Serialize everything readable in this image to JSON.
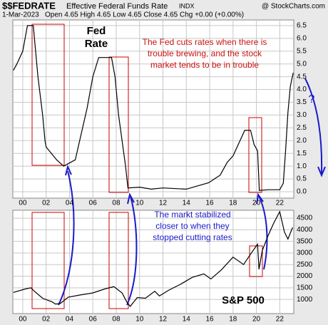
{
  "header": {
    "symbol": "$$FEDRATE",
    "name": "Effective Federal Funds Rate",
    "exchange": "INDX",
    "date": "1-Mar-2023",
    "quote": "Open 4.65  High 4.65  Low 4.65  Close 4.65  Chg +0.00 (+0.00%)",
    "watermark": "@ StockCharts.com"
  },
  "chart_data": [
    {
      "type": "line",
      "title": [
        "Fed",
        "Rate"
      ],
      "annotation": [
        "The Fed cuts rates when there is",
        "trouble brewing, and the stock",
        "market tends to be in trouble"
      ],
      "annotation2": "?",
      "x": [
        1999.2,
        1999.5,
        2000.0,
        2000.4,
        2000.9,
        2001.0,
        2001.3,
        2001.7,
        2001.9,
        2002.0,
        2002.9,
        2003.5,
        2004.5,
        2005.0,
        2005.5,
        2006.0,
        2006.5,
        2007.6,
        2007.9,
        2008.2,
        2008.5,
        2008.8,
        2009.0,
        2010.0,
        2011.0,
        2012.0,
        2014.0,
        2015.9,
        2016.9,
        2017.5,
        2018.0,
        2018.5,
        2019.0,
        2019.5,
        2019.8,
        2020.1,
        2020.25,
        2021.0,
        2022.0,
        2022.3,
        2022.5,
        2022.7,
        2022.9,
        2023.0,
        2023.15
      ],
      "series": [
        {
          "name": "Effective Federal Funds Rate",
          "color": "#000000",
          "values": [
            4.75,
            5.0,
            5.5,
            6.5,
            6.5,
            6.0,
            4.5,
            3.0,
            2.0,
            1.75,
            1.25,
            1.0,
            1.25,
            2.25,
            3.25,
            4.5,
            5.25,
            5.25,
            4.5,
            3.0,
            2.0,
            1.0,
            0.15,
            0.18,
            0.1,
            0.15,
            0.1,
            0.35,
            0.65,
            1.15,
            1.4,
            1.9,
            2.4,
            2.4,
            1.85,
            1.6,
            0.05,
            0.08,
            0.08,
            0.33,
            1.6,
            3.1,
            4.1,
            4.33,
            4.65
          ]
        }
      ],
      "xlim": [
        1999.15,
        2023.2
      ],
      "ylim": [
        -0.25,
        6.72
      ],
      "xticks": [
        {
          "value": 2000,
          "label": "00"
        },
        {
          "value": 2002,
          "label": "02"
        },
        {
          "value": 2004,
          "label": "04"
        },
        {
          "value": 2006,
          "label": "06"
        },
        {
          "value": 2008,
          "label": "08"
        },
        {
          "value": 2010,
          "label": "10"
        },
        {
          "value": 2012,
          "label": "12"
        },
        {
          "value": 2014,
          "label": "14"
        },
        {
          "value": 2016,
          "label": "16"
        },
        {
          "value": 2018,
          "label": "18"
        },
        {
          "value": 2020,
          "label": "20"
        },
        {
          "value": 2022,
          "label": "22"
        }
      ],
      "yticks": [
        {
          "value": 0,
          "label": "0.0"
        },
        0.5,
        {
          "value": 1,
          "label": "1.0"
        },
        1.5,
        {
          "value": 2,
          "label": "2.0"
        },
        2.5,
        {
          "value": 3,
          "label": "3.0"
        },
        3.5,
        {
          "value": 4,
          "label": "4.0"
        },
        4.5,
        {
          "value": 5,
          "label": "5.0"
        },
        5.5,
        {
          "value": 6,
          "label": "6.0"
        },
        6.5
      ],
      "grid": true
    },
    {
      "type": "line",
      "title": "S&P 500",
      "annotation": [
        "The markt stabilized",
        "closer to when  they",
        "stopped cutting rates"
      ],
      "x": [
        1999.2,
        2000.2,
        2000.7,
        2001.0,
        2001.7,
        2002.5,
        2002.8,
        2003.2,
        2003.9,
        2005.0,
        2006.0,
        2007.0,
        2007.8,
        2008.5,
        2008.9,
        2009.2,
        2009.8,
        2010.5,
        2011.3,
        2011.7,
        2012.5,
        2013.5,
        2014.5,
        2015.5,
        2016.1,
        2017.0,
        2018.0,
        2018.9,
        2019.5,
        2020.1,
        2020.22,
        2020.5,
        2021.0,
        2021.5,
        2022.0,
        2022.4,
        2022.7,
        2023.1
      ],
      "series": [
        {
          "name": "S&P 500",
          "color": "#000000",
          "values": [
            1300,
            1450,
            1500,
            1350,
            1050,
            900,
            800,
            820,
            1100,
            1200,
            1280,
            1450,
            1550,
            1280,
            900,
            700,
            1080,
            1050,
            1350,
            1150,
            1400,
            1650,
            1950,
            2100,
            1880,
            2270,
            2820,
            2500,
            2950,
            3380,
            2300,
            3100,
            3750,
            4300,
            4780,
            3900,
            3600,
            4100
          ]
        }
      ],
      "xlim": [
        1999.15,
        2023.2
      ],
      "ylim": [
        390,
        4840
      ],
      "xticks": [
        {
          "value": 2000,
          "label": "00"
        },
        {
          "value": 2002,
          "label": "02"
        },
        {
          "value": 2004,
          "label": "04"
        },
        {
          "value": 2006,
          "label": "06"
        },
        {
          "value": 2008,
          "label": "08"
        },
        {
          "value": 2010,
          "label": "10"
        },
        {
          "value": 2012,
          "label": "12"
        },
        {
          "value": 2014,
          "label": "14"
        },
        {
          "value": 2016,
          "label": "16"
        },
        {
          "value": 2018,
          "label": "18"
        },
        {
          "value": 2020,
          "label": "20"
        },
        {
          "value": 2022,
          "label": "22"
        }
      ],
      "yticks": [
        1000,
        1500,
        2000,
        2500,
        3000,
        3500,
        4000,
        4500
      ],
      "grid": true
    }
  ]
}
